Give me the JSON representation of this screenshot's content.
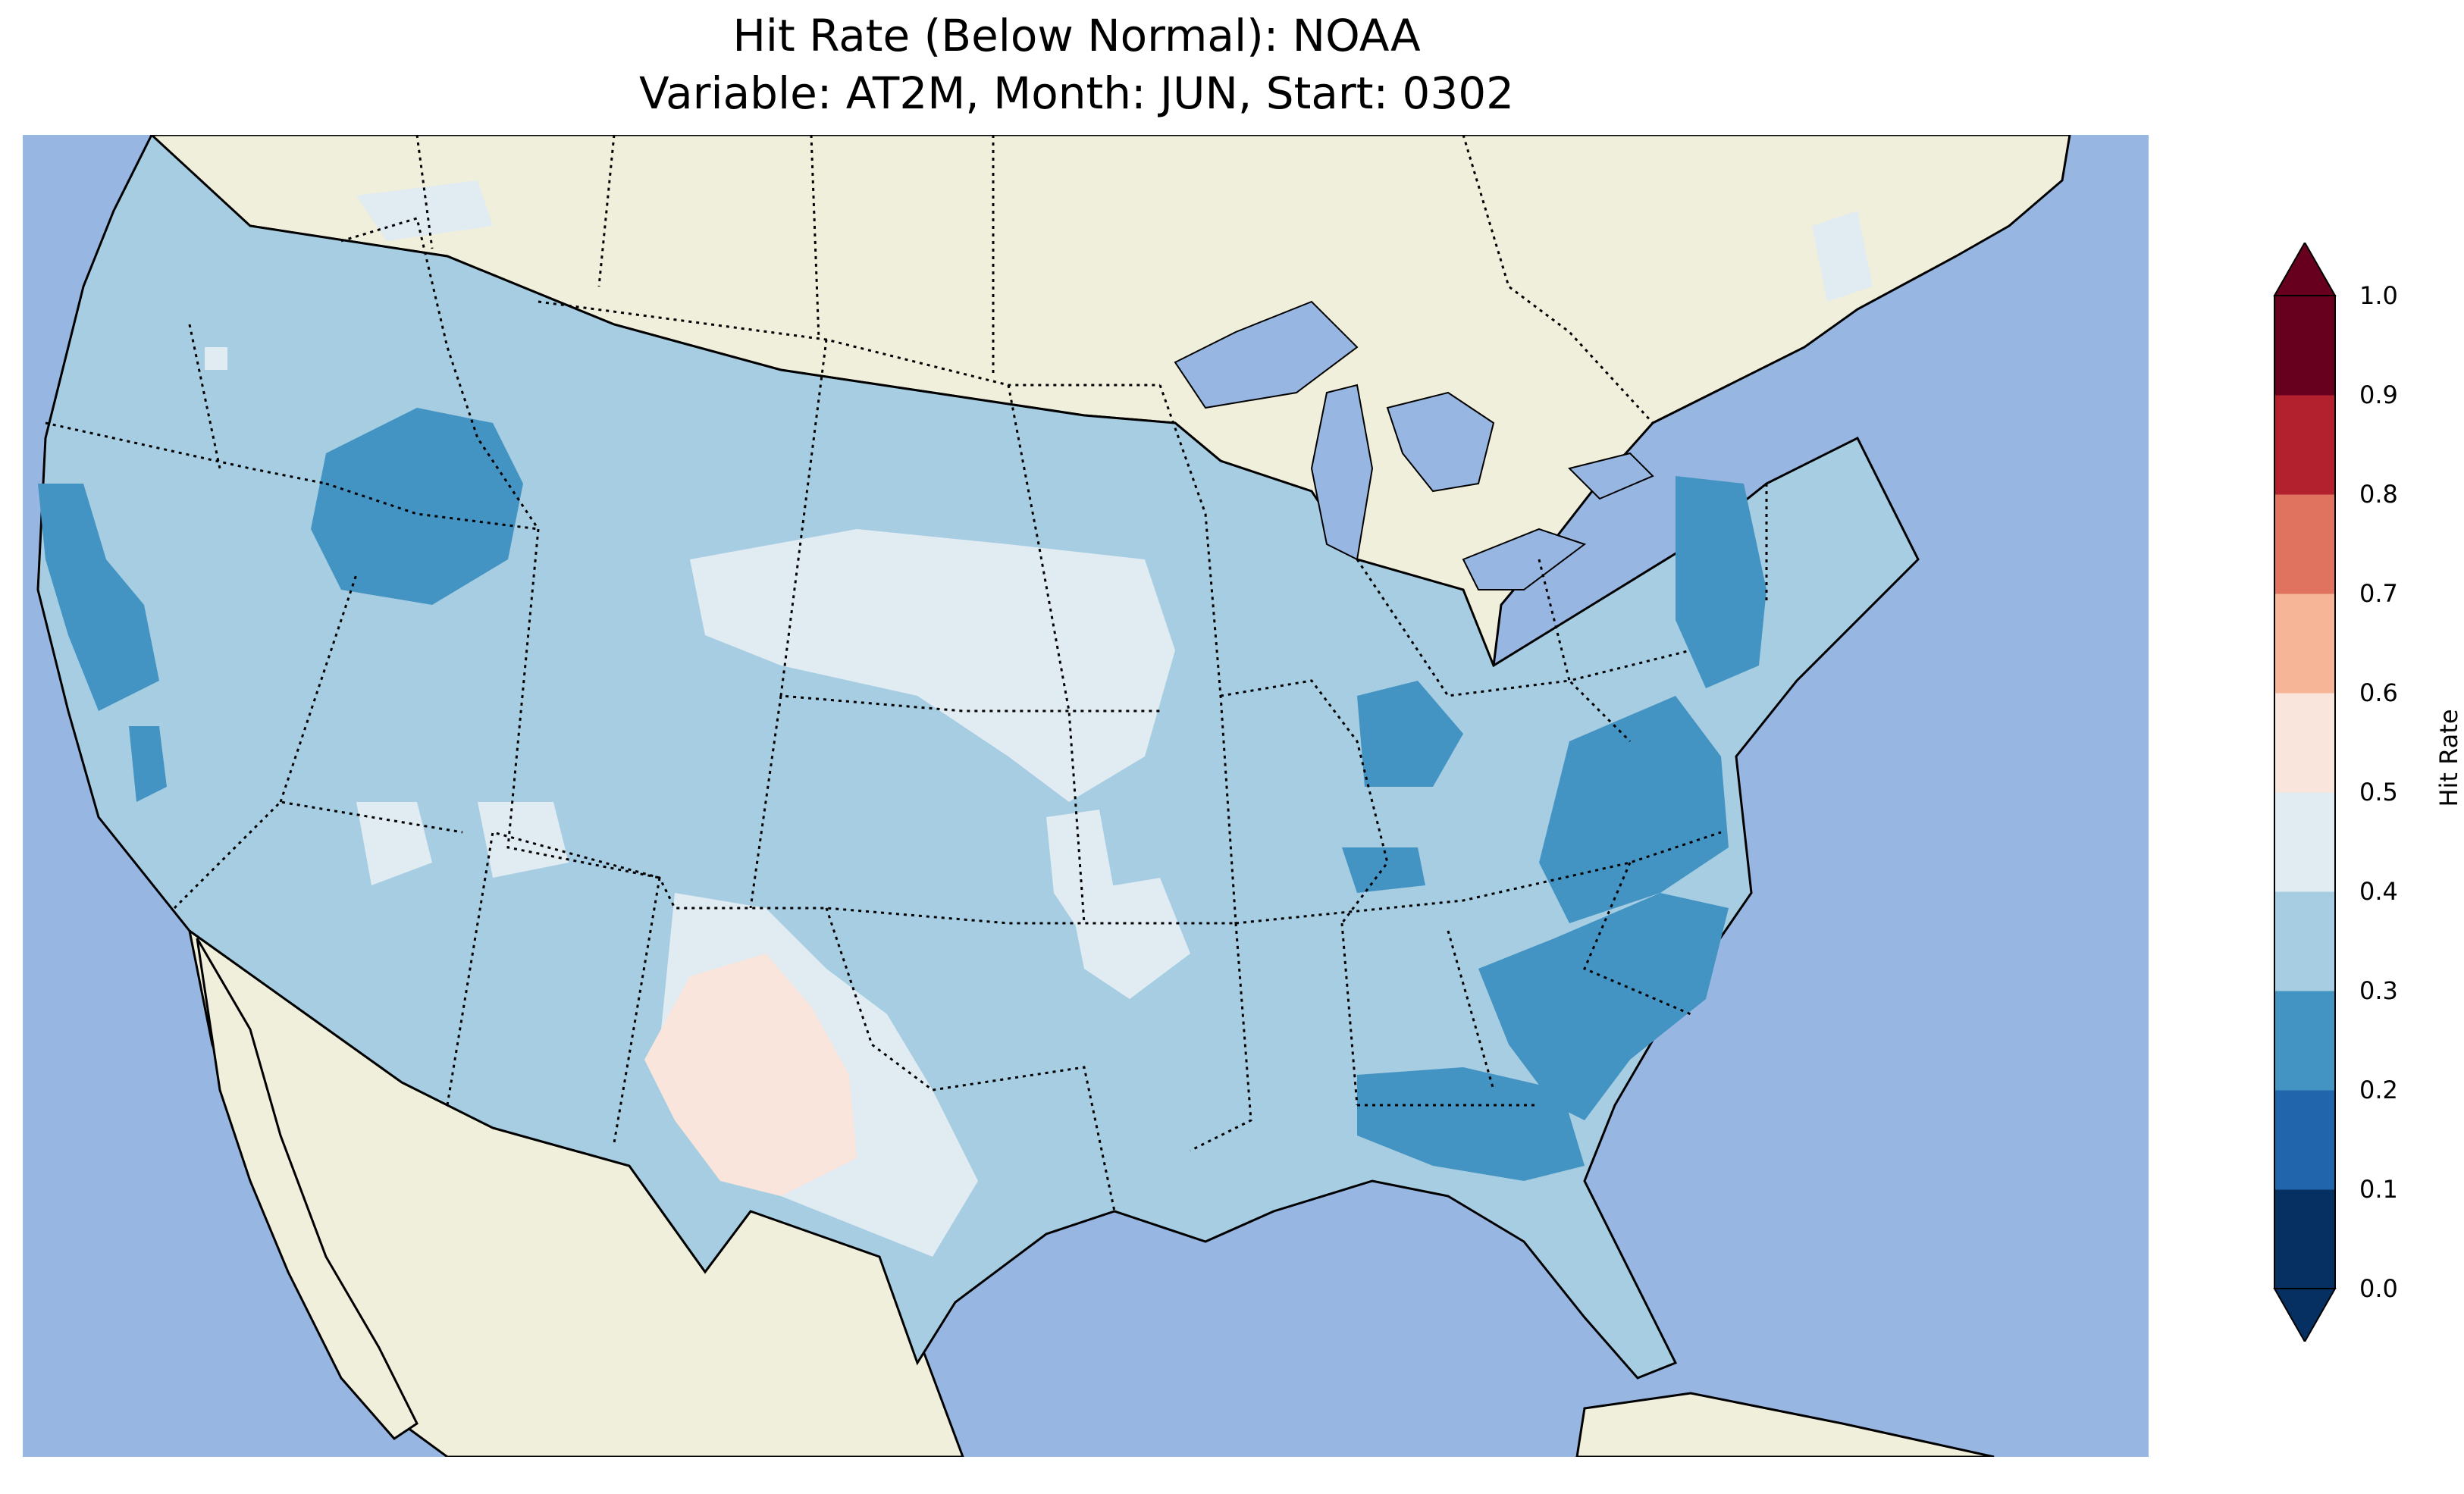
{
  "title": {
    "line1": "Hit Rate (Below Normal): NOAA",
    "line2": "Variable: AT2M, Month: JUN, Start: 0302"
  },
  "colors": {
    "ocean": "#97b6e1",
    "land": "#efefdb",
    "lake": "#97b6e1"
  },
  "colorbar": {
    "label": "Hit Rate",
    "ticks": [
      "0.0",
      "0.1",
      "0.2",
      "0.3",
      "0.4",
      "0.5",
      "0.6",
      "0.7",
      "0.8",
      "0.9",
      "1.0"
    ],
    "bins": [
      {
        "range": [
          0.0,
          0.1
        ],
        "color": "#053061"
      },
      {
        "range": [
          0.1,
          0.2
        ],
        "color": "#2166ac"
      },
      {
        "range": [
          0.2,
          0.3
        ],
        "color": "#4393c3"
      },
      {
        "range": [
          0.3,
          0.4
        ],
        "color": "#a6cde2"
      },
      {
        "range": [
          0.4,
          0.5
        ],
        "color": "#e1ebf2"
      },
      {
        "range": [
          0.5,
          0.6
        ],
        "color": "#f9e5dc"
      },
      {
        "range": [
          0.6,
          0.7
        ],
        "color": "#f5b596"
      },
      {
        "range": [
          0.7,
          0.8
        ],
        "color": "#df735f"
      },
      {
        "range": [
          0.8,
          0.9
        ],
        "color": "#b3212f"
      },
      {
        "range": [
          0.9,
          1.0
        ],
        "color": "#67001f"
      }
    ],
    "extend": "both"
  }
}
